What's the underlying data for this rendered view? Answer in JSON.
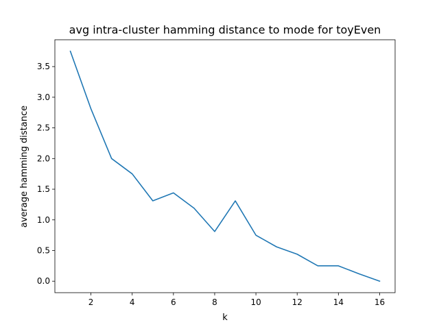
{
  "chart_data": {
    "type": "line",
    "title": "avg intra-cluster hamming distance to mode for toyEven",
    "xlabel": "k",
    "ylabel": "average hamming distance",
    "x": [
      1,
      2,
      3,
      4,
      5,
      6,
      7,
      8,
      9,
      10,
      11,
      12,
      13,
      14,
      15,
      16
    ],
    "series": [
      {
        "values": [
          3.75,
          2.81,
          2.0,
          1.75,
          1.31,
          1.44,
          1.19,
          0.81,
          1.31,
          0.75,
          0.56,
          0.44,
          0.25,
          0.25,
          0.12,
          0.0
        ],
        "color": "#1f77b4"
      }
    ],
    "xlim": [
      0.25,
      16.75
    ],
    "ylim": [
      -0.1875,
      3.9375
    ],
    "xticks": [
      2,
      4,
      6,
      8,
      10,
      12,
      14,
      16
    ],
    "xtick_labels": [
      "2",
      "4",
      "6",
      "8",
      "10",
      "12",
      "14",
      "16"
    ],
    "yticks": [
      0.0,
      0.5,
      1.0,
      1.5,
      2.0,
      2.5,
      3.0,
      3.5
    ],
    "ytick_labels": [
      "0.0",
      "0.5",
      "1.0",
      "1.5",
      "2.0",
      "2.5",
      "3.0",
      "3.5"
    ],
    "grid": false,
    "legend": "none"
  }
}
